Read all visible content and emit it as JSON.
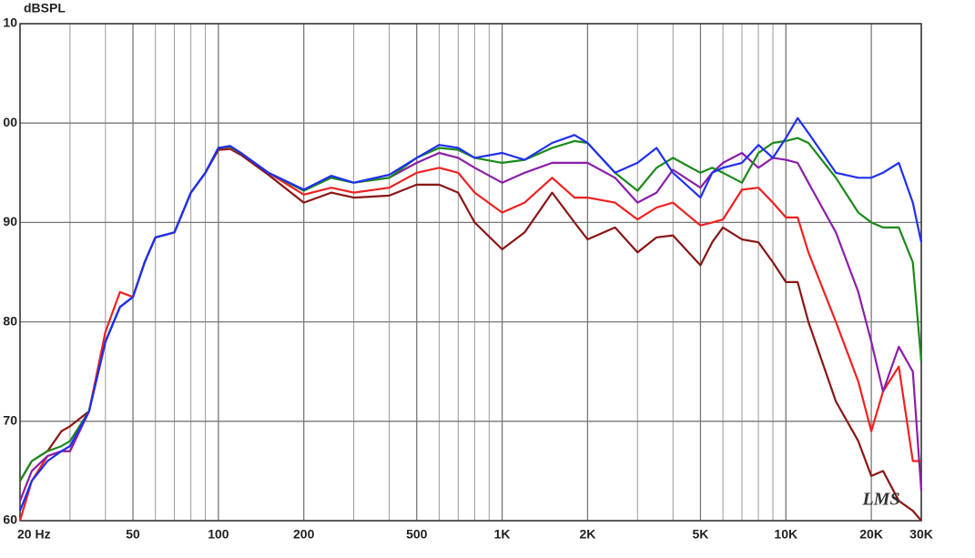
{
  "chart_data": {
    "type": "line",
    "y_axis_label": "dBSPL",
    "watermark": "LMS",
    "xscale": "log",
    "grid": true,
    "xlim": [
      20,
      30000
    ],
    "ylim": [
      60,
      110
    ],
    "xticks": [
      {
        "value": 20,
        "label": "20  Hz"
      },
      50,
      100,
      200,
      500,
      {
        "value": 1000,
        "label": "1K"
      },
      {
        "value": 2000,
        "label": "2K"
      },
      {
        "value": 5000,
        "label": "5K"
      },
      {
        "value": 10000,
        "label": "10K"
      },
      {
        "value": 20000,
        "label": "20K"
      },
      {
        "value": 30000,
        "label": "30K"
      }
    ],
    "x_minor_grid": [
      30,
      40,
      60,
      70,
      80,
      90,
      300,
      400,
      600,
      700,
      800,
      900,
      3000,
      4000,
      6000,
      7000,
      8000,
      9000
    ],
    "yticks": [
      60,
      70,
      80,
      90,
      {
        "value": 100,
        "label": "00"
      },
      {
        "value": 110,
        "label": "10"
      }
    ],
    "x": [
      20,
      22,
      25,
      28,
      30,
      35,
      40,
      45,
      50,
      55,
      60,
      70,
      80,
      90,
      100,
      110,
      120,
      150,
      200,
      250,
      300,
      400,
      500,
      600,
      700,
      800,
      1000,
      1200,
      1500,
      1800,
      2000,
      2500,
      3000,
      3500,
      4000,
      5000,
      5500,
      6000,
      7000,
      8000,
      9000,
      10000,
      11000,
      12000,
      15000,
      18000,
      20000,
      22000,
      25000,
      28000,
      30000
    ],
    "series": [
      {
        "color": "#1f2ff0",
        "values": [
          61,
          64,
          66,
          67,
          67.5,
          71,
          78,
          81.5,
          82.5,
          86,
          88.5,
          89,
          93,
          95,
          97.5,
          97.7,
          97,
          95,
          93.3,
          94.7,
          94,
          94.8,
          96.5,
          97.8,
          97.5,
          96.5,
          97,
          96.3,
          98,
          98.8,
          98,
          95,
          96,
          97.5,
          95,
          92.5,
          95,
          95.5,
          96,
          97.8,
          96.5,
          98.5,
          100.5,
          99,
          95,
          94.5,
          94.5,
          95,
          96,
          92,
          88
        ]
      },
      {
        "color": "#1a8a1a",
        "values": [
          64,
          66,
          67,
          67.5,
          68,
          71,
          78,
          81.5,
          82.5,
          86,
          88.5,
          89,
          93,
          95,
          97.5,
          97.6,
          97,
          95,
          93.2,
          94.5,
          94,
          94.5,
          96.5,
          97.5,
          97.3,
          96.5,
          96,
          96.3,
          97.5,
          98.2,
          98,
          95,
          93.2,
          95.5,
          96.5,
          95,
          95.5,
          95,
          94,
          97,
          98,
          98.2,
          98.5,
          98,
          94.5,
          91,
          90,
          89.5,
          89.5,
          86,
          76
        ]
      },
      {
        "color": "#8a1fa8",
        "values": [
          62,
          65,
          66.5,
          67,
          67,
          71,
          78,
          81.5,
          82.5,
          86,
          88.5,
          89,
          93,
          95,
          97.5,
          97.6,
          97,
          95,
          93.3,
          94.5,
          94,
          94.5,
          96,
          97,
          96.5,
          95.5,
          94,
          95,
          96,
          96,
          96,
          94.5,
          92,
          93,
          95.3,
          93.5,
          95,
          96,
          97,
          95.5,
          96.5,
          96.3,
          96,
          94,
          89,
          83,
          78,
          73,
          77.5,
          75,
          63
        ]
      },
      {
        "color": "#f02020",
        "values": [
          60,
          64,
          66.5,
          67,
          67,
          71,
          79,
          83,
          82.5,
          86,
          88.5,
          89,
          93,
          95,
          97.5,
          97.5,
          97,
          95,
          92.8,
          93.5,
          93,
          93.5,
          95,
          95.5,
          95,
          93,
          91,
          92,
          94.5,
          92.5,
          92.5,
          92,
          90.3,
          91.5,
          92,
          89.7,
          90,
          90.3,
          93.3,
          93.5,
          92,
          90.5,
          90.5,
          87,
          80,
          74,
          69,
          73,
          75.5,
          66,
          66
        ]
      },
      {
        "color": "#8a1515",
        "values": [
          64,
          66,
          67,
          69,
          69.5,
          71,
          78,
          81.5,
          82.5,
          86,
          88.5,
          89,
          93,
          95,
          97.3,
          97.4,
          96.8,
          94.8,
          92,
          93,
          92.5,
          92.7,
          93.8,
          93.8,
          93,
          90,
          87.3,
          89,
          93,
          90,
          88.3,
          89.5,
          87,
          88.5,
          88.7,
          85.7,
          88,
          89.5,
          88.3,
          88,
          86,
          84,
          84,
          80,
          72,
          68,
          64.5,
          65,
          62,
          61,
          60
        ]
      }
    ]
  }
}
